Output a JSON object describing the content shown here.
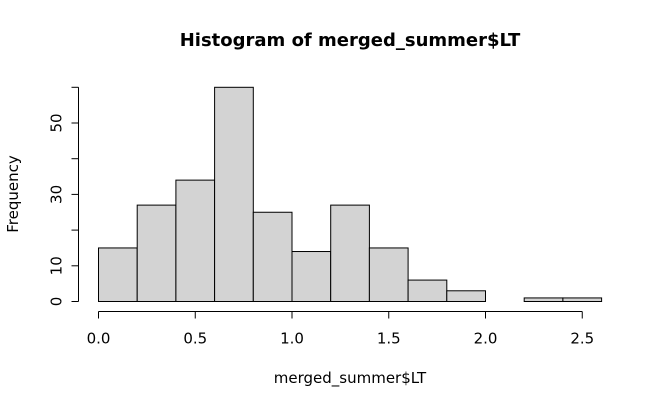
{
  "chart_data": {
    "type": "bar",
    "title": "Histogram of merged_summer$LT",
    "xlabel": "merged_summer$LT",
    "ylabel": "Frequency",
    "bins": [
      {
        "from": 0.0,
        "to": 0.2,
        "count": 15
      },
      {
        "from": 0.2,
        "to": 0.4,
        "count": 27
      },
      {
        "from": 0.4,
        "to": 0.6,
        "count": 34
      },
      {
        "from": 0.6,
        "to": 0.8,
        "count": 60
      },
      {
        "from": 0.8,
        "to": 1.0,
        "count": 25
      },
      {
        "from": 1.0,
        "to": 1.2,
        "count": 14
      },
      {
        "from": 1.2,
        "to": 1.4,
        "count": 27
      },
      {
        "from": 1.4,
        "to": 1.6,
        "count": 15
      },
      {
        "from": 1.6,
        "to": 1.8,
        "count": 6
      },
      {
        "from": 1.8,
        "to": 2.0,
        "count": 3
      },
      {
        "from": 2.0,
        "to": 2.2,
        "count": 0
      },
      {
        "from": 2.2,
        "to": 2.4,
        "count": 1
      },
      {
        "from": 2.4,
        "to": 2.6,
        "count": 1
      }
    ],
    "xlim": [
      0,
      2.6
    ],
    "ylim": [
      0,
      60
    ],
    "x_ticks": [
      0.0,
      0.5,
      1.0,
      1.5,
      2.0,
      2.5
    ],
    "x_tick_labels": [
      "0.0",
      "0.5",
      "1.0",
      "1.5",
      "2.0",
      "2.5"
    ],
    "y_ticks": [
      0,
      10,
      20,
      30,
      40,
      50,
      60
    ],
    "y_tick_labels": [
      "0",
      "10",
      "",
      "30",
      "",
      "50",
      ""
    ],
    "grid": false,
    "colors": {
      "bar_fill": "#d3d3d3",
      "bar_stroke": "#000000"
    }
  }
}
